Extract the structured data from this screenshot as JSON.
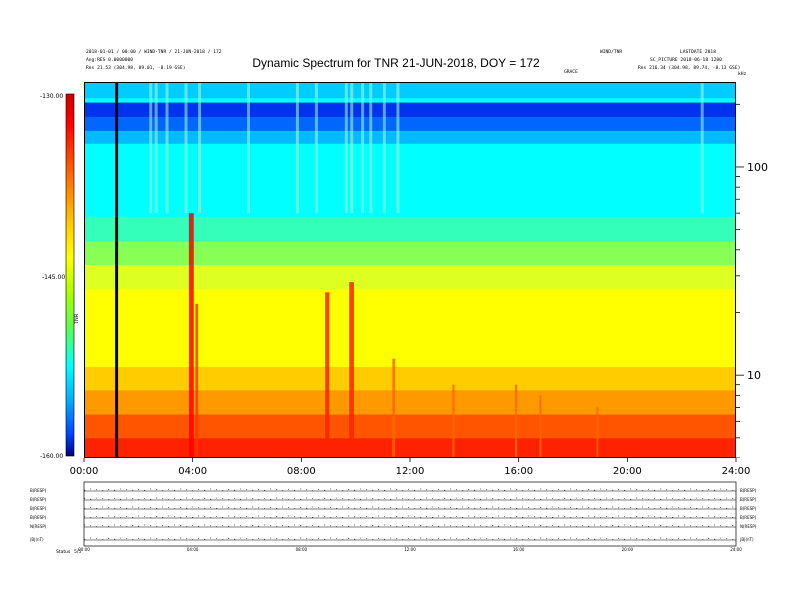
{
  "header": {
    "title": "Dynamic Spectrum for TNR 21-JUN-2018, DOY = 172",
    "left_line1": "2018-01-01 / 00:00 / WIND-TNR / 21-JUN-2018 / 172",
    "left_line2": "Ang:RES 0.0000000",
    "left_line3": "Res    21.53 (304.98, 89.01, -8.19 GSE)",
    "center_small": "GRACE",
    "right_top1": "WIND/TNR",
    "right_top2": "LASTDATE 2018",
    "right_line2": "SC_PICTURE 2018-06-18 1200",
    "right_line3": "Res    216.34 (304.98, 89.74, -8.13 GSE)",
    "right_corner": "kHz"
  },
  "colorbar": {
    "ticks": [
      "-130.00",
      "-145.00",
      "-160.00"
    ],
    "label": "TNR",
    "colors": [
      "#cc0000",
      "#ff0000",
      "#ff6600",
      "#ffcc00",
      "#ffff00",
      "#aaff00",
      "#55ff55",
      "#00ffff",
      "#00aaff",
      "#0044ff",
      "#000080"
    ]
  },
  "chart_data": {
    "type": "heatmap",
    "title": "Dynamic Spectrum for TNR 21-JUN-2018, DOY = 172",
    "xlabel": "",
    "ylabel": "kHz",
    "x_ticks": [
      "00:00",
      "04:00",
      "08:00",
      "12:00",
      "16:00",
      "20:00",
      "24:00"
    ],
    "x_range_hours": [
      0,
      24
    ],
    "y_scale": "log",
    "y_range_khz": [
      4,
      256
    ],
    "y_ticks_khz": [
      100,
      10
    ],
    "y_tick_labels": [
      "100",
      "10"
    ],
    "colorscale_db": [
      -160,
      -130
    ],
    "frequency_bands": [
      {
        "fmin": 4,
        "fmax": 5,
        "color": "#ff2200"
      },
      {
        "fmin": 5,
        "fmax": 6.5,
        "color": "#ff5500"
      },
      {
        "fmin": 6.5,
        "fmax": 8.5,
        "color": "#ff9900"
      },
      {
        "fmin": 8.5,
        "fmax": 11,
        "color": "#ffcc00"
      },
      {
        "fmin": 11,
        "fmax": 26,
        "color": "#ffff00"
      },
      {
        "fmin": 26,
        "fmax": 34,
        "color": "#ddff22"
      },
      {
        "fmin": 34,
        "fmax": 44,
        "color": "#88ff55"
      },
      {
        "fmin": 44,
        "fmax": 58,
        "color": "#33ffbb"
      },
      {
        "fmin": 58,
        "fmax": 130,
        "color": "#00ffff"
      },
      {
        "fmin": 130,
        "fmax": 150,
        "color": "#00bbff"
      },
      {
        "fmin": 150,
        "fmax": 175,
        "color": "#0066ff"
      },
      {
        "fmin": 175,
        "fmax": 205,
        "color": "#0033ee"
      },
      {
        "fmin": 205,
        "fmax": 215,
        "color": "#00ffff"
      },
      {
        "fmin": 215,
        "fmax": 256,
        "color": "#00ccff"
      }
    ],
    "data_gap_hour": 1.2,
    "bursts": [
      {
        "hour": 3.95,
        "fmin": 4,
        "fmax": 60,
        "color": "#ff0000",
        "width_h": 0.18
      },
      {
        "hour": 4.15,
        "fmin": 4,
        "fmax": 22,
        "color": "#ff3300",
        "width_h": 0.1
      },
      {
        "hour": 8.95,
        "fmin": 4,
        "fmax": 25,
        "color": "#ff2200",
        "width_h": 0.15
      },
      {
        "hour": 9.85,
        "fmin": 4,
        "fmax": 28,
        "color": "#ff2200",
        "width_h": 0.18
      },
      {
        "hour": 11.4,
        "fmin": 4,
        "fmax": 12,
        "color": "#ff6600",
        "width_h": 0.1
      },
      {
        "hour": 13.6,
        "fmin": 4,
        "fmax": 9,
        "color": "#ff6600",
        "width_h": 0.08
      },
      {
        "hour": 15.9,
        "fmin": 4,
        "fmax": 9,
        "color": "#ff6600",
        "width_h": 0.08
      },
      {
        "hour": 16.8,
        "fmin": 4,
        "fmax": 8,
        "color": "#ff6600",
        "width_h": 0.06
      },
      {
        "hour": 18.9,
        "fmin": 4,
        "fmax": 7,
        "color": "#ff6600",
        "width_h": 0.06
      }
    ],
    "highfreq_stripes": [
      2.4,
      2.6,
      3.0,
      3.7,
      4.2,
      6.0,
      7.8,
      8.5,
      9.6,
      9.8,
      10.2,
      10.5,
      11.0,
      11.5,
      22.7
    ]
  },
  "panels": {
    "labels": [
      "B(RESP)",
      "B(RESP)",
      "B(RESP)",
      "B(RESP)",
      "N(RESP)",
      "|B|(nT)",
      "Status"
    ],
    "footer_left": "Status",
    "footer_val": "5/5"
  }
}
